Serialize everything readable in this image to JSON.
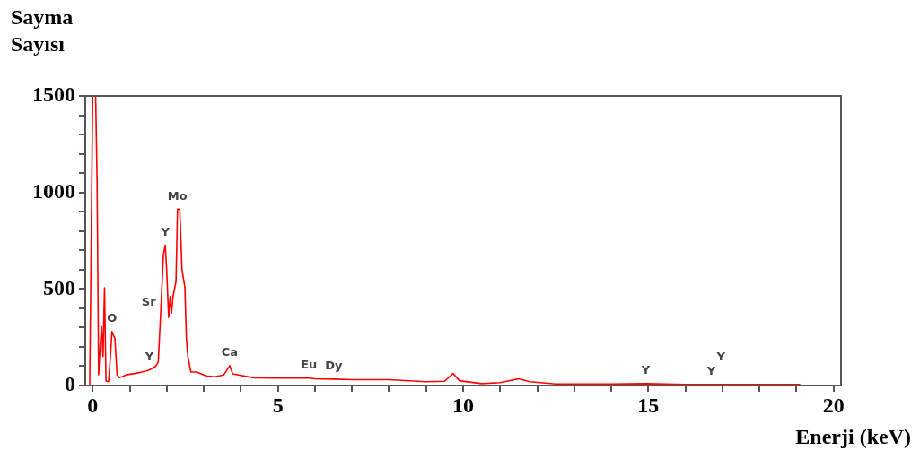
{
  "chart_data": {
    "type": "line",
    "ylabel": "Sayma Sayısı",
    "xlabel": "Enerji (keV)",
    "xlim": [
      -0.2,
      20.2
    ],
    "ylim": [
      0,
      1500
    ],
    "xticks": [
      0,
      {
        "value": 1,
        "label": null
      },
      {
        "value": 2,
        "label": null
      },
      {
        "value": 3,
        "label": null
      },
      {
        "value": 4,
        "label": null
      },
      5,
      {
        "value": 6,
        "label": null
      },
      {
        "value": 7,
        "label": null
      },
      {
        "value": 8,
        "label": null
      },
      {
        "value": 9,
        "label": null
      },
      10,
      {
        "value": 11,
        "label": null
      },
      {
        "value": 12,
        "label": null
      },
      {
        "value": 13,
        "label": null
      },
      {
        "value": 14,
        "label": null
      },
      15,
      {
        "value": 16,
        "label": null
      },
      {
        "value": 17,
        "label": null
      },
      {
        "value": 18,
        "label": null
      },
      {
        "value": 19,
        "label": null
      },
      20
    ],
    "yticks": [
      0,
      {
        "value": 100,
        "label": null
      },
      {
        "value": 200,
        "label": null
      },
      {
        "value": 300,
        "label": null
      },
      {
        "value": 400,
        "label": null
      },
      500,
      {
        "value": 600,
        "label": null
      },
      {
        "value": 700,
        "label": null
      },
      {
        "value": 800,
        "label": null
      },
      {
        "value": 900,
        "label": null
      },
      1000,
      {
        "value": 1100,
        "label": null
      },
      {
        "value": 1200,
        "label": null
      },
      {
        "value": 1300,
        "label": null
      },
      {
        "value": 1400,
        "label": null
      },
      1500
    ],
    "marker": "none",
    "line_style": "solid",
    "legend": false,
    "series": [
      {
        "color": "#ff0000",
        "x": [
          -0.1,
          -0.08,
          -0.05,
          0.0,
          0.04,
          0.08,
          0.12,
          0.16,
          0.2,
          0.24,
          0.28,
          0.32,
          0.36,
          0.43,
          0.48,
          0.52,
          0.56,
          0.6,
          0.66,
          0.72,
          0.9,
          1.13,
          1.33,
          1.53,
          1.7,
          1.77,
          1.85,
          1.91,
          1.96,
          2.0,
          2.05,
          2.09,
          2.13,
          2.17,
          2.25,
          2.29,
          2.35,
          2.37,
          2.41,
          2.49,
          2.53,
          2.57,
          2.65,
          2.81,
          3.06,
          3.3,
          3.54,
          3.7,
          3.78,
          4.34,
          5.0,
          5.84,
          6.0,
          6.51,
          7.0,
          8.0,
          9.0,
          9.5,
          9.73,
          9.9,
          10.5,
          11.0,
          11.5,
          11.8,
          12.5,
          14.0,
          14.93,
          16.0,
          16.7,
          16.96,
          17.5,
          19.1
        ],
        "values": [
          0,
          10,
          553,
          1500,
          1500,
          1500,
          1055,
          56,
          200,
          305,
          150,
          506,
          23,
          20,
          150,
          280,
          260,
          243,
          56,
          40,
          55,
          62,
          70,
          80,
          100,
          120,
          430,
          680,
          727,
          590,
          352,
          461,
          375,
          461,
          539,
          914,
          914,
          820,
          602,
          508,
          243,
          150,
          70,
          70,
          50,
          45,
          55,
          103,
          60,
          40,
          39,
          38,
          35,
          33,
          30,
          30,
          20,
          22,
          62,
          25,
          10,
          15,
          35,
          20,
          8,
          8,
          10,
          6,
          5,
          5,
          5,
          5
        ]
      }
    ],
    "annotations": [
      {
        "text": "O",
        "x": 0.52,
        "y": 280
      },
      {
        "text": "Y",
        "x": 1.53,
        "y": 80
      },
      {
        "text": "Sr",
        "x": 1.85,
        "y": 430
      },
      {
        "text": "Y",
        "x": 1.96,
        "y": 727
      },
      {
        "text": "Mo",
        "x": 2.29,
        "y": 914
      },
      {
        "text": "Ca",
        "x": 3.7,
        "y": 103
      },
      {
        "text": "Eu",
        "x": 5.84,
        "y": 38
      },
      {
        "text": "Dy",
        "x": 6.51,
        "y": 33
      },
      {
        "text": "Y",
        "x": 14.93,
        "y": 10
      },
      {
        "text": "Y",
        "x": 16.7,
        "y": 5
      },
      {
        "text": "Y",
        "x": 16.96,
        "y": 5
      }
    ]
  }
}
